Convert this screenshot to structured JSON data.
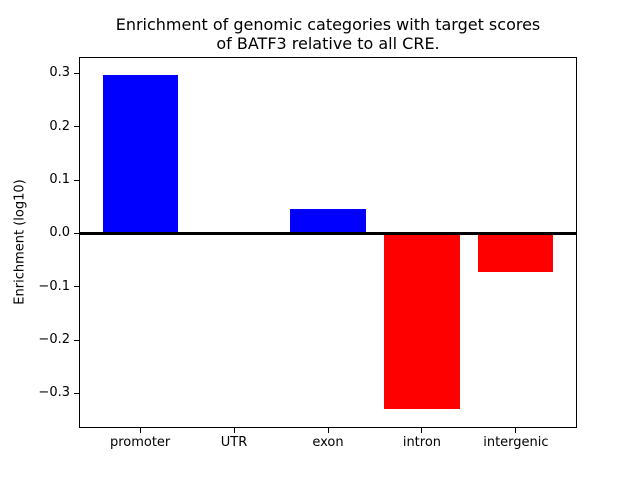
{
  "chart_data": {
    "type": "bar",
    "title": "Enrichment of genomic categories with target scores\nof BATF3 relative to all CRE.",
    "title_lines": [
      "Enrichment of genomic categories with target scores",
      "of BATF3 relative to all CRE."
    ],
    "xlabel": "",
    "ylabel": "Enrichment (log10)",
    "categories": [
      "promoter",
      "UTR",
      "exon",
      "intron",
      "intergenic"
    ],
    "values": [
      0.298,
      0.0,
      0.045,
      -0.329,
      -0.073
    ],
    "bar_colors": [
      "#0000ff",
      "#0000ff",
      "#0000ff",
      "#ff0000",
      "#ff0000"
    ],
    "positive_color": "#0000ff",
    "negative_color": "#ff0000",
    "ylim": [
      -0.363,
      0.329
    ],
    "yticks": [
      -0.3,
      -0.2,
      -0.1,
      0.0,
      0.1,
      0.2,
      0.3
    ],
    "ytick_labels": [
      "−0.3",
      "−0.2",
      "−0.1",
      "0.0",
      "0.1",
      "0.2",
      "0.3"
    ],
    "bar_width_fraction": 0.8,
    "zero_line": true,
    "grid": false,
    "legend": null,
    "background_color": "#ffffff",
    "text_color": "#000000"
  }
}
